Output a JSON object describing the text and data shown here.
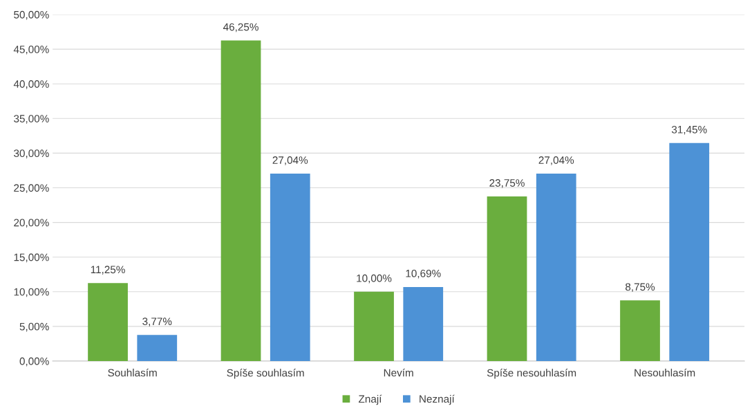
{
  "chart_data": {
    "type": "bar",
    "categories": [
      "Souhlasím",
      "Spíše souhlasím",
      "Nevím",
      "Spíše nesouhlasím",
      "Nesouhlasím"
    ],
    "series": [
      {
        "name": "Znají",
        "color": "#6aae3e",
        "values": [
          11.25,
          46.25,
          10.0,
          23.75,
          8.75
        ],
        "value_labels": [
          "11,25%",
          "46,25%",
          "10,00%",
          "23,75%",
          "8,75%"
        ]
      },
      {
        "name": "Neznají",
        "color": "#4d92d6",
        "values": [
          3.77,
          27.04,
          10.69,
          27.04,
          31.45
        ],
        "value_labels": [
          "3,77%",
          "27,04%",
          "10,69%",
          "27,04%",
          "31,45%"
        ]
      }
    ],
    "ylim": [
      0,
      50
    ],
    "yticks": [
      {
        "value": 0,
        "label": "0,00%"
      },
      {
        "value": 5,
        "label": "5,00%"
      },
      {
        "value": 10,
        "label": "10,00%"
      },
      {
        "value": 15,
        "label": "15,00%"
      },
      {
        "value": 20,
        "label": "20,00%"
      },
      {
        "value": 25,
        "label": "25,00%"
      },
      {
        "value": 30,
        "label": "30,00%"
      },
      {
        "value": 35,
        "label": "35,00%"
      },
      {
        "value": 40,
        "label": "40,00%"
      },
      {
        "value": 45,
        "label": "45,00%"
      },
      {
        "value": 50,
        "label": "50,00%"
      }
    ],
    "grid": "y",
    "legend": "bottom"
  }
}
